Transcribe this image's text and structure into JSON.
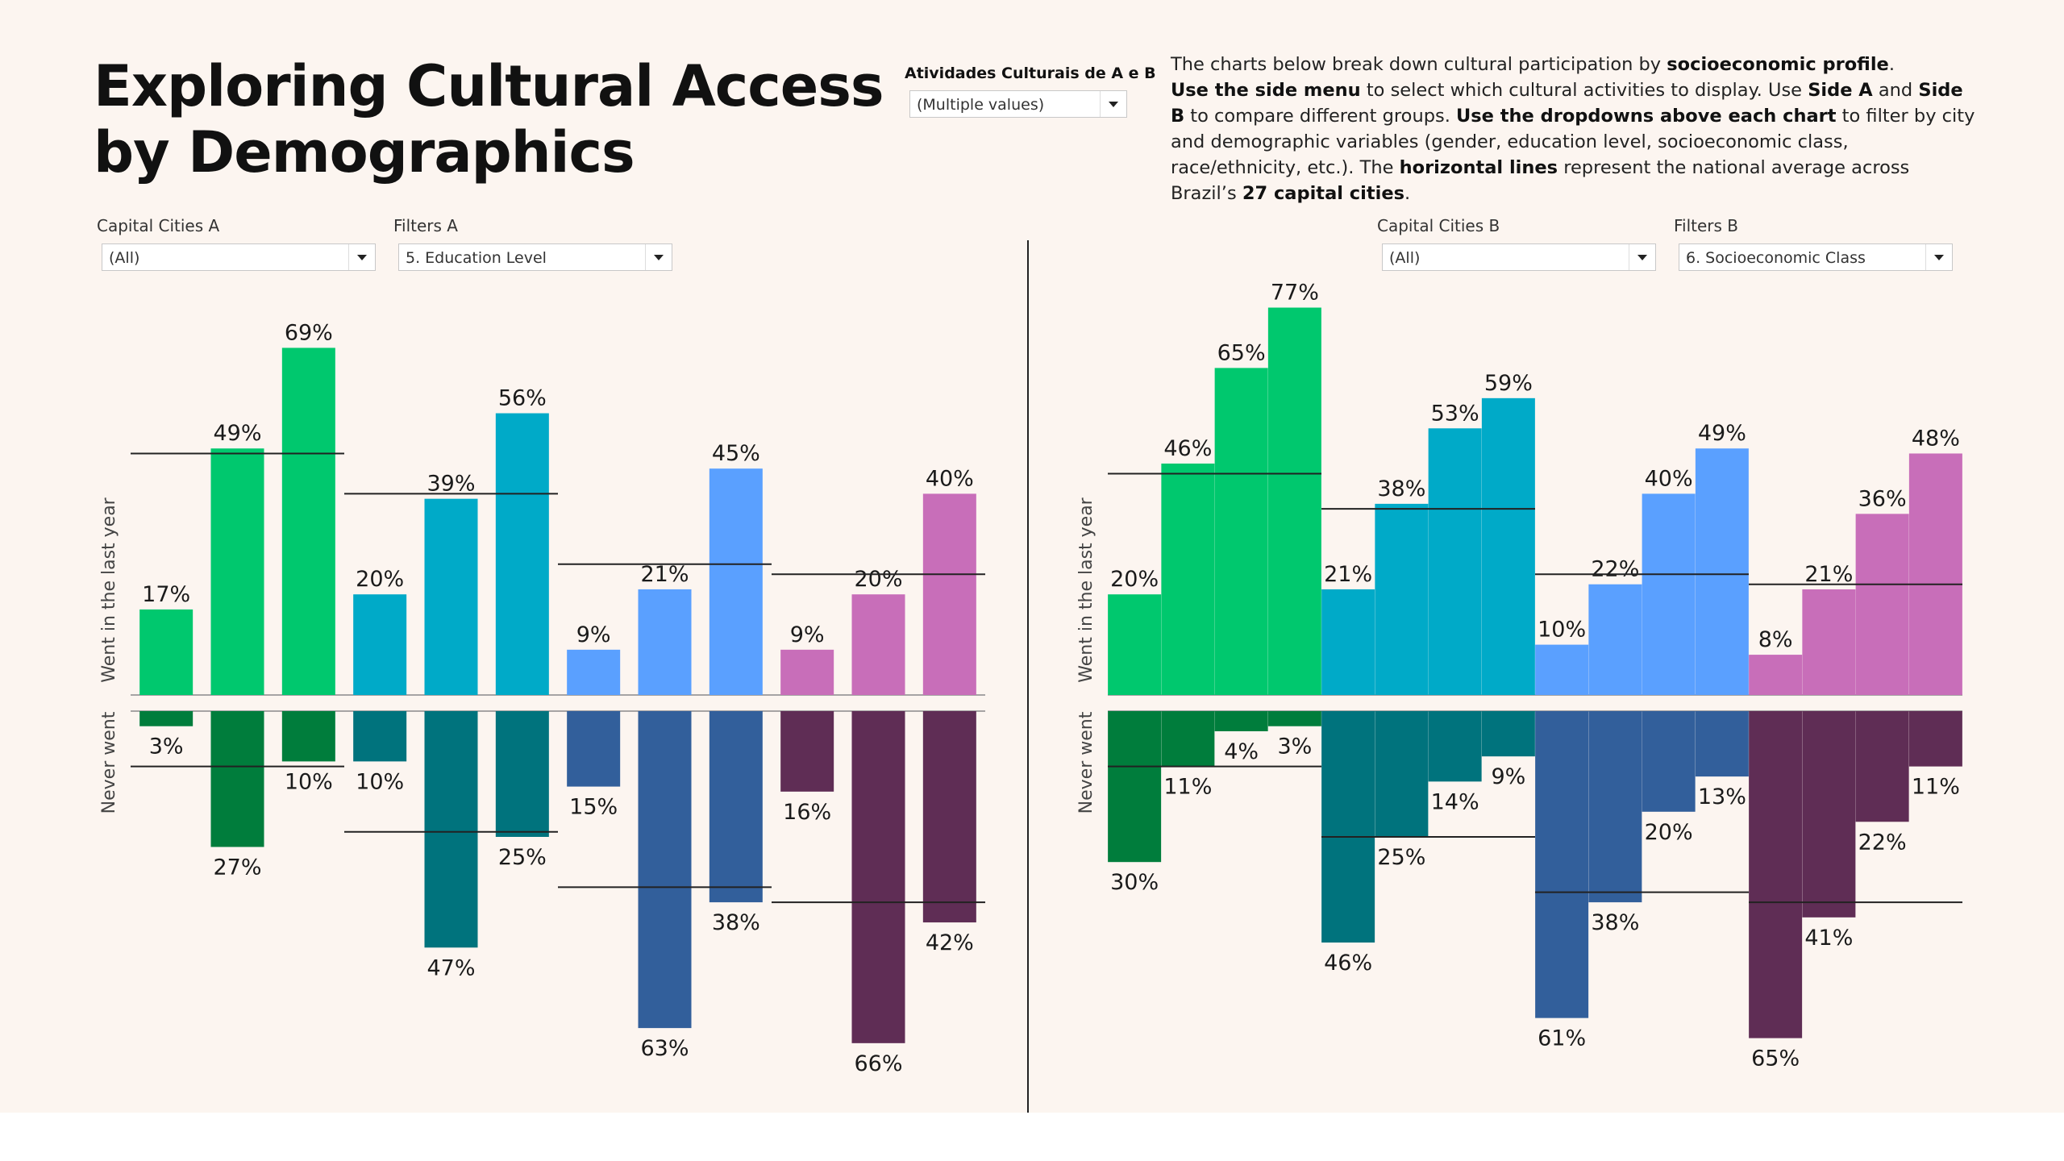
{
  "header": {
    "title_line1": "Exploring Cultural Access",
    "title_line2": "by Demographics"
  },
  "activity_filter": {
    "label": "Atividades Culturais de A e B",
    "value": "(Multiple values)"
  },
  "intro": {
    "s1": "The charts below break down cultural participation by ",
    "b1": "socioeconomic profile",
    "s2": ".",
    "b2": "Use the side menu",
    "s3": " to select which cultural activities to display. Use ",
    "b3": "Side A",
    "s4": " and ",
    "b4": "Side B",
    "s5": " to compare different groups. ",
    "b5": "Use the dropdowns above each chart",
    "s6": " to filter by city and demographic variables (gender, education level, socioeconomic class, race/ethnicity, etc.). The ",
    "b6": "horizontal lines",
    "s7": " represent the national average across Brazil’s ",
    "b7": "27 capital cities",
    "s8": "."
  },
  "side_a": {
    "cities_label": "Capital Cities A",
    "cities_value": "(All)",
    "filters_label": "Filters A",
    "filters_value": "5. Education Level"
  },
  "side_b": {
    "cities_label": "Capital Cities B",
    "cities_value": "(All)",
    "filters_label": "Filters B",
    "filters_value": "6. Socioeconomic Class"
  },
  "colors": {
    "went": [
      "#00c86e",
      "#00aac8",
      "#5aa0ff",
      "#c86eb9"
    ],
    "never": [
      "#007d3c",
      "#00737d",
      "#325f9b",
      "#5f2d55"
    ]
  },
  "chart_data": [
    {
      "type": "bar",
      "side": "A",
      "ylabel_top": "Went in the last year",
      "ylabel_bottom": "Never went",
      "groups": [
        {
          "went": [
            17,
            49,
            69
          ],
          "never": [
            3,
            27,
            10
          ],
          "avg_went": 48,
          "avg_never": 11
        },
        {
          "went": [
            20,
            39,
            56
          ],
          "never": [
            10,
            47,
            25
          ],
          "avg_went": 40,
          "avg_never": 24
        },
        {
          "went": [
            9,
            21,
            45
          ],
          "never": [
            15,
            63,
            38
          ],
          "avg_went": 26,
          "avg_never": 35
        },
        {
          "went": [
            9,
            20,
            40
          ],
          "never": [
            16,
            66,
            42
          ],
          "avg_went": 24,
          "avg_never": 38
        }
      ]
    },
    {
      "type": "bar",
      "side": "B",
      "ylabel_top": "Went in the last year",
      "ylabel_bottom": "Never went",
      "groups": [
        {
          "went": [
            20,
            46,
            65,
            77
          ],
          "never": [
            30,
            11,
            4,
            3
          ],
          "avg_went": 44,
          "avg_never": 11
        },
        {
          "went": [
            21,
            38,
            53,
            59
          ],
          "never": [
            46,
            25,
            14,
            9
          ],
          "avg_went": 37,
          "avg_never": 25
        },
        {
          "went": [
            10,
            22,
            40,
            49
          ],
          "never": [
            61,
            38,
            20,
            13
          ],
          "avg_went": 24,
          "avg_never": 36
        },
        {
          "went": [
            8,
            21,
            36,
            48
          ],
          "never": [
            65,
            41,
            22,
            11
          ],
          "avg_went": 22,
          "avg_never": 38
        }
      ]
    }
  ]
}
